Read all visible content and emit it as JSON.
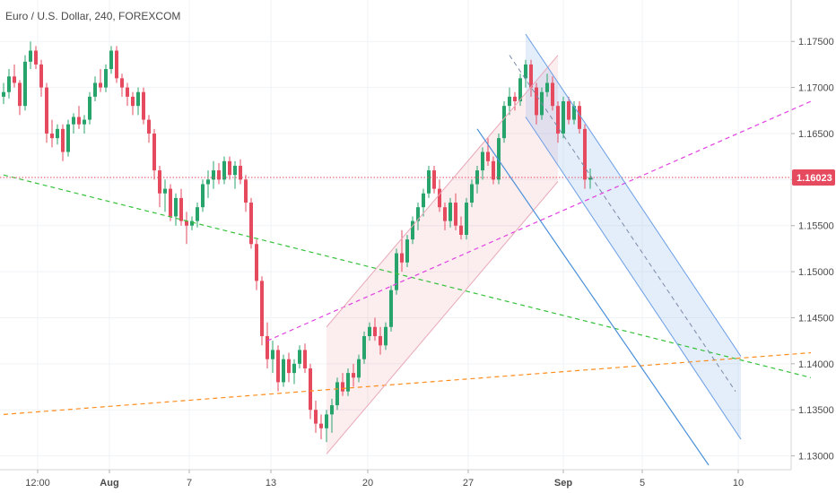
{
  "chart_data": {
    "type": "candlestick",
    "title": "Euro / U.S. Dollar, 240, FOREXCOM",
    "symbol": "Euro / U.S. Dollar",
    "interval": "240",
    "source": "FOREXCOM",
    "y_axis": {
      "range": [
        1.1285,
        1.1795
      ],
      "ticks": [
        "1.17500",
        "1.17000",
        "1.16500",
        "1.16000",
        "1.15500",
        "1.15000",
        "1.14500",
        "1.14000",
        "1.13500",
        "1.13000"
      ]
    },
    "x_axis": {
      "labels": [
        {
          "text": "12:00",
          "bold": false
        },
        {
          "text": "Aug",
          "bold": true
        },
        {
          "text": "7",
          "bold": false
        },
        {
          "text": "13",
          "bold": false
        },
        {
          "text": "20",
          "bold": false
        },
        {
          "text": "27",
          "bold": false
        },
        {
          "text": "Sep",
          "bold": true
        },
        {
          "text": "5",
          "bold": false
        },
        {
          "text": "10",
          "bold": false
        }
      ]
    },
    "last_price": {
      "value": 1.16023,
      "label": "1.16023",
      "color": "#e64a5e"
    },
    "candles": [
      [
        1.169,
        1.1705,
        1.1682,
        1.1695
      ],
      [
        1.1695,
        1.172,
        1.1688,
        1.1712
      ],
      [
        1.1712,
        1.1725,
        1.17,
        1.1705
      ],
      [
        1.1705,
        1.1708,
        1.167,
        1.168
      ],
      [
        1.168,
        1.1735,
        1.1675,
        1.1728
      ],
      [
        1.1728,
        1.175,
        1.172,
        1.174
      ],
      [
        1.174,
        1.1745,
        1.172,
        1.1725
      ],
      [
        1.1725,
        1.173,
        1.169,
        1.17
      ],
      [
        1.17,
        1.1705,
        1.164,
        1.165
      ],
      [
        1.165,
        1.1665,
        1.1635,
        1.1645
      ],
      [
        1.1645,
        1.166,
        1.1638,
        1.1655
      ],
      [
        1.1655,
        1.166,
        1.162,
        1.163
      ],
      [
        1.163,
        1.1665,
        1.1625,
        1.166
      ],
      [
        1.166,
        1.1672,
        1.165,
        1.1668
      ],
      [
        1.1668,
        1.168,
        1.1655,
        1.166
      ],
      [
        1.166,
        1.167,
        1.165,
        1.1665
      ],
      [
        1.1665,
        1.1695,
        1.166,
        1.169
      ],
      [
        1.169,
        1.1712,
        1.1685,
        1.1705
      ],
      [
        1.1705,
        1.172,
        1.1695,
        1.17
      ],
      [
        1.17,
        1.1725,
        1.1695,
        1.172
      ],
      [
        1.172,
        1.1745,
        1.1715,
        1.174
      ],
      [
        1.174,
        1.1745,
        1.1705,
        1.171
      ],
      [
        1.171,
        1.1715,
        1.169,
        1.17
      ],
      [
        1.17,
        1.1705,
        1.168,
        1.169
      ],
      [
        1.169,
        1.1695,
        1.167,
        1.168
      ],
      [
        1.168,
        1.17,
        1.167,
        1.1695
      ],
      [
        1.1695,
        1.17,
        1.166,
        1.1665
      ],
      [
        1.1665,
        1.167,
        1.164,
        1.165
      ],
      [
        1.165,
        1.1655,
        1.16,
        1.161
      ],
      [
        1.161,
        1.1615,
        1.157,
        1.1585
      ],
      [
        1.1585,
        1.16,
        1.1565,
        1.159
      ],
      [
        1.159,
        1.1595,
        1.1555,
        1.156
      ],
      [
        1.156,
        1.1585,
        1.155,
        1.158
      ],
      [
        1.158,
        1.159,
        1.155,
        1.1555
      ],
      [
        1.1555,
        1.1565,
        1.153,
        1.155
      ],
      [
        1.155,
        1.156,
        1.1545,
        1.1555
      ],
      [
        1.1555,
        1.1575,
        1.1548,
        1.157
      ],
      [
        1.157,
        1.16,
        1.1565,
        1.1595
      ],
      [
        1.1595,
        1.161,
        1.158,
        1.16
      ],
      [
        1.16,
        1.162,
        1.159,
        1.161
      ],
      [
        1.161,
        1.1618,
        1.1595,
        1.16
      ],
      [
        1.16,
        1.1625,
        1.1595,
        1.162
      ],
      [
        1.162,
        1.1625,
        1.16,
        1.1605
      ],
      [
        1.1605,
        1.162,
        1.159,
        1.1615
      ],
      [
        1.1615,
        1.1622,
        1.1595,
        1.16
      ],
      [
        1.16,
        1.1605,
        1.1565,
        1.1575
      ],
      [
        1.1575,
        1.158,
        1.1525,
        1.153
      ],
      [
        1.153,
        1.1535,
        1.148,
        1.149
      ],
      [
        1.149,
        1.1495,
        1.142,
        1.143
      ],
      [
        1.143,
        1.1445,
        1.1395,
        1.1405
      ],
      [
        1.1405,
        1.1425,
        1.139,
        1.1415
      ],
      [
        1.1415,
        1.142,
        1.137,
        1.138
      ],
      [
        1.138,
        1.141,
        1.1375,
        1.1405
      ],
      [
        1.1405,
        1.1412,
        1.138,
        1.139
      ],
      [
        1.139,
        1.1405,
        1.1378,
        1.14
      ],
      [
        1.14,
        1.142,
        1.1395,
        1.1415
      ],
      [
        1.1415,
        1.1422,
        1.139,
        1.1395
      ],
      [
        1.1395,
        1.14,
        1.134,
        1.135
      ],
      [
        1.135,
        1.136,
        1.1325,
        1.1335
      ],
      [
        1.1335,
        1.1345,
        1.1318,
        1.133
      ],
      [
        1.133,
        1.135,
        1.1315,
        1.1345
      ],
      [
        1.1345,
        1.1362,
        1.1325,
        1.1355
      ],
      [
        1.1355,
        1.1385,
        1.135,
        1.138
      ],
      [
        1.138,
        1.139,
        1.1365,
        1.137
      ],
      [
        1.137,
        1.1395,
        1.1365,
        1.139
      ],
      [
        1.139,
        1.14,
        1.1375,
        1.1385
      ],
      [
        1.1385,
        1.141,
        1.138,
        1.1405
      ],
      [
        1.1405,
        1.1435,
        1.14,
        1.143
      ],
      [
        1.143,
        1.1445,
        1.1425,
        1.144
      ],
      [
        1.144,
        1.145,
        1.1425,
        1.143
      ],
      [
        1.143,
        1.144,
        1.141,
        1.142
      ],
      [
        1.142,
        1.1445,
        1.1415,
        1.144
      ],
      [
        1.144,
        1.1485,
        1.1435,
        1.148
      ],
      [
        1.148,
        1.1525,
        1.1475,
        1.152
      ],
      [
        1.152,
        1.1545,
        1.15,
        1.151
      ],
      [
        1.151,
        1.154,
        1.1505,
        1.1535
      ],
      [
        1.1535,
        1.156,
        1.153,
        1.1555
      ],
      [
        1.1555,
        1.1575,
        1.1545,
        1.157
      ],
      [
        1.157,
        1.159,
        1.156,
        1.1585
      ],
      [
        1.1585,
        1.1615,
        1.158,
        1.161
      ],
      [
        1.161,
        1.1615,
        1.1585,
        1.159
      ],
      [
        1.159,
        1.16,
        1.1565,
        1.157
      ],
      [
        1.157,
        1.1575,
        1.1545,
        1.1555
      ],
      [
        1.1555,
        1.158,
        1.1548,
        1.1575
      ],
      [
        1.1575,
        1.1585,
        1.1545,
        1.155
      ],
      [
        1.155,
        1.156,
        1.1535,
        1.154
      ],
      [
        1.154,
        1.158,
        1.1535,
        1.1575
      ],
      [
        1.1575,
        1.16,
        1.157,
        1.1595
      ],
      [
        1.1595,
        1.1615,
        1.1585,
        1.161
      ],
      [
        1.161,
        1.1635,
        1.16,
        1.163
      ],
      [
        1.163,
        1.1645,
        1.1615,
        1.162
      ],
      [
        1.162,
        1.1625,
        1.1595,
        1.16
      ],
      [
        1.16,
        1.165,
        1.1595,
        1.1645
      ],
      [
        1.1645,
        1.1685,
        1.164,
        1.168
      ],
      [
        1.168,
        1.17,
        1.167,
        1.169
      ],
      [
        1.169,
        1.1695,
        1.1675,
        1.1685
      ],
      [
        1.1685,
        1.1715,
        1.168,
        1.171
      ],
      [
        1.171,
        1.173,
        1.17,
        1.1725
      ],
      [
        1.1725,
        1.173,
        1.169,
        1.17
      ],
      [
        1.17,
        1.1705,
        1.166,
        1.167
      ],
      [
        1.167,
        1.17,
        1.1665,
        1.1695
      ],
      [
        1.1695,
        1.1715,
        1.169,
        1.1705
      ],
      [
        1.1705,
        1.1712,
        1.1675,
        1.168
      ],
      [
        1.168,
        1.1685,
        1.164,
        1.165
      ],
      [
        1.165,
        1.169,
        1.1645,
        1.1685
      ],
      [
        1.1685,
        1.169,
        1.166,
        1.1665
      ],
      [
        1.1665,
        1.1685,
        1.166,
        1.168
      ],
      [
        1.168,
        1.1685,
        1.165,
        1.1655
      ],
      [
        1.1655,
        1.166,
        1.159,
        1.16
      ],
      [
        1.16,
        1.1612,
        1.159,
        1.1602
      ]
    ],
    "colors": {
      "up": "#27a46b",
      "down": "#e64a5e"
    },
    "drawings": [
      {
        "kind": "trendline",
        "style": "dashed",
        "color": "#34c13a",
        "points": [
          [
            0,
            1.1605
          ],
          [
            150,
            1.1385
          ]
        ]
      },
      {
        "kind": "trendline",
        "style": "dashed",
        "color": "#ff8c1a",
        "points": [
          [
            0,
            1.1345
          ],
          [
            150,
            1.1412
          ]
        ]
      },
      {
        "kind": "trendline",
        "style": "dashed",
        "color": "#e040e0",
        "points": [
          [
            49,
            1.1425
          ],
          [
            150,
            1.1685
          ]
        ]
      },
      {
        "kind": "horizontal",
        "style": "dotted",
        "color": "#e64a5e",
        "value": 1.16023
      },
      {
        "kind": "channel",
        "color": "#e8a8b8",
        "fill": "rgba(230,74,94,0.10)",
        "upper": [
          [
            60,
            1.144
          ],
          [
            103,
            1.1735
          ]
        ],
        "lower": [
          [
            60,
            1.1302
          ],
          [
            103,
            1.1598
          ]
        ]
      },
      {
        "kind": "channel",
        "color": "#6a9ee6",
        "fill": "rgba(106,158,230,0.18)",
        "upper": [
          [
            97,
            1.1758
          ],
          [
            137,
            1.1408
          ]
        ],
        "lower": [
          [
            97,
            1.1668
          ],
          [
            137,
            1.1318
          ]
        ],
        "median": [
          [
            94,
            1.1735
          ],
          [
            136,
            1.137
          ]
        ]
      },
      {
        "kind": "trendline",
        "style": "solid",
        "color": "#4a90d9",
        "points": [
          [
            88,
            1.1655
          ],
          [
            131,
            1.129
          ]
        ]
      }
    ]
  }
}
